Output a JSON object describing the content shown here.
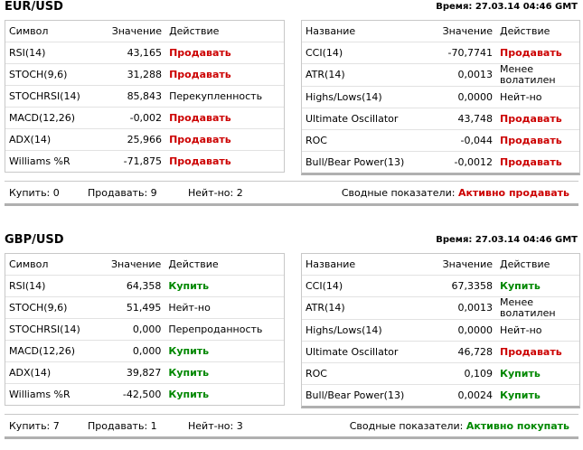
{
  "blocks": [
    {
      "title": "EUR/USD",
      "time": "Время: 27.03.14 04:46 GMT",
      "left": {
        "header": [
          "Символ",
          "Значение",
          "Действие"
        ],
        "rows": [
          {
            "name": "RSI(14)",
            "value": "43,165",
            "action": "Продавать",
            "color": "#cc0000"
          },
          {
            "name": "STOCH(9,6)",
            "value": "31,288",
            "action": "Продавать",
            "color": "#cc0000"
          },
          {
            "name": "STOCHRSI(14)",
            "value": "85,843",
            "action": "Перекупленность",
            "color": "#000000"
          },
          {
            "name": "MACD(12,26)",
            "value": "-0,002",
            "action": "Продавать",
            "color": "#cc0000"
          },
          {
            "name": "ADX(14)",
            "value": "25,966",
            "action": "Продавать",
            "color": "#cc0000"
          },
          {
            "name": "Williams %R",
            "value": "-71,875",
            "action": "Продавать",
            "color": "#cc0000"
          }
        ]
      },
      "right": {
        "header": [
          "Название",
          "Значение",
          "Действие"
        ],
        "rows": [
          {
            "name": "CCI(14)",
            "value": "-70,7741",
            "action": "Продавать",
            "color": "#cc0000"
          },
          {
            "name": "ATR(14)",
            "value": "0,0013",
            "action": "Менее волатилен",
            "color": "#000000"
          },
          {
            "name": "Highs/Lows(14)",
            "value": "0,0000",
            "action": "Нейт-но",
            "color": "#000000"
          },
          {
            "name": "Ultimate Oscillator",
            "value": "43,748",
            "action": "Продавать",
            "color": "#cc0000"
          },
          {
            "name": "ROC",
            "value": "-0,044",
            "action": "Продавать",
            "color": "#cc0000"
          },
          {
            "name": "Bull/Bear Power(13)",
            "value": "-0,0012",
            "action": "Продавать",
            "color": "#cc0000"
          }
        ]
      },
      "summary": {
        "buy": "Купить: 0",
        "sell": "Продавать: 9",
        "neutral": "Нейт-но: 2",
        "label": "Сводные показатели:",
        "value": "Активно продавать",
        "color": "#cc0000"
      }
    },
    {
      "title": "GBP/USD",
      "time": "Время: 27.03.14 04:46 GMT",
      "left": {
        "header": [
          "Символ",
          "Значение",
          "Действие"
        ],
        "rows": [
          {
            "name": "RSI(14)",
            "value": "64,358",
            "action": "Купить",
            "color": "#008800"
          },
          {
            "name": "STOCH(9,6)",
            "value": "51,495",
            "action": "Нейт-но",
            "color": "#000000"
          },
          {
            "name": "STOCHRSI(14)",
            "value": "0,000",
            "action": "Перепроданность",
            "color": "#000000"
          },
          {
            "name": "MACD(12,26)",
            "value": "0,000",
            "action": "Купить",
            "color": "#008800"
          },
          {
            "name": "ADX(14)",
            "value": "39,827",
            "action": "Купить",
            "color": "#008800"
          },
          {
            "name": "Williams %R",
            "value": "-42,500",
            "action": "Купить",
            "color": "#008800"
          }
        ]
      },
      "right": {
        "header": [
          "Название",
          "Значение",
          "Действие"
        ],
        "rows": [
          {
            "name": "CCI(14)",
            "value": "67,3358",
            "action": "Купить",
            "color": "#008800"
          },
          {
            "name": "ATR(14)",
            "value": "0,0013",
            "action": "Менее волатилен",
            "color": "#000000"
          },
          {
            "name": "Highs/Lows(14)",
            "value": "0,0000",
            "action": "Нейт-но",
            "color": "#000000"
          },
          {
            "name": "Ultimate Oscillator",
            "value": "46,728",
            "action": "Продавать",
            "color": "#cc0000"
          },
          {
            "name": "ROC",
            "value": "0,109",
            "action": "Купить",
            "color": "#008800"
          },
          {
            "name": "Bull/Bear Power(13)",
            "value": "0,0024",
            "action": "Купить",
            "color": "#008800"
          }
        ]
      },
      "summary": {
        "buy": "Купить: 7",
        "sell": "Продавать: 1",
        "neutral": "Нейт-но: 3",
        "label": "Сводные показатели:",
        "value": "Активно покупать",
        "color": "#008800"
      }
    }
  ]
}
